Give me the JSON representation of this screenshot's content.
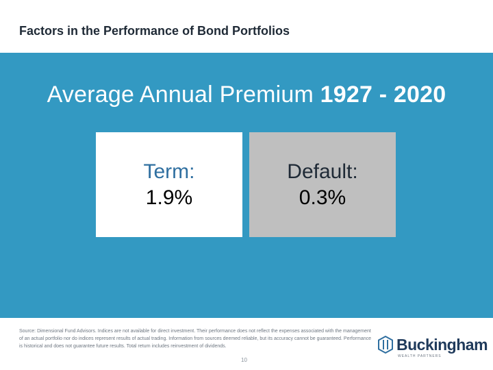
{
  "slide": {
    "title": "Factors in the Performance of Bond Portfolios",
    "headline_prefix": "Average Annual Premium ",
    "headline_years": "1927 - 2020"
  },
  "premiums": [
    {
      "label": "Term:",
      "value": "1.9%"
    },
    {
      "label": "Default:",
      "value": "0.3%"
    }
  ],
  "footer": {
    "disclaimer": "Source: Dimensional Fund Advisors. Indices are not available for direct investment. Their performance does not reflect the expenses associated with the management of an actual portfolio nor do indices represent results of actual trading. Information from sources deemed reliable, but its accuracy cannot be guaranteed. Performance is historical and does not guarantee future results. Total return includes reinvestment of dividends.",
    "page_number": "10",
    "logo_text": "Buckingham",
    "logo_tagline": "WEALTH PARTNERS"
  },
  "colors": {
    "panel": "#3399c2",
    "term_box": "#ffffff",
    "default_box": "#bfbfbf",
    "brand": "#1f3a5b"
  }
}
